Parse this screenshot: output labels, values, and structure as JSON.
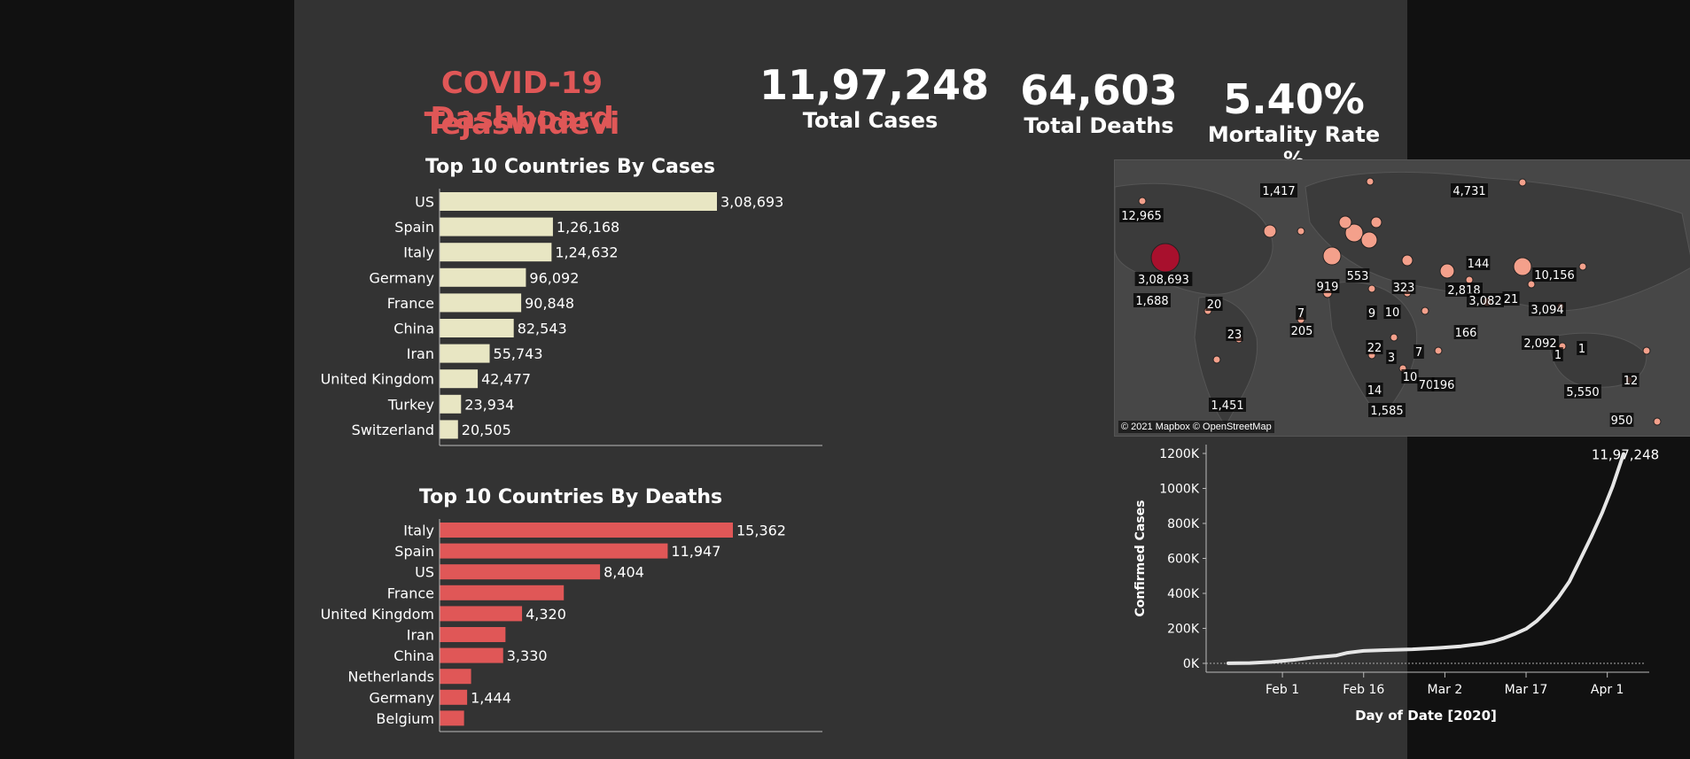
{
  "dashboard": {
    "title_line1": "COVID-19 Dashboard",
    "title_line2": "Tejaswidevi"
  },
  "kpis": {
    "total_cases": {
      "value": "11,97,248",
      "label": "Total Cases"
    },
    "total_deaths": {
      "value": "64,603",
      "label": "Total Deaths"
    },
    "mortality": {
      "value": "5.40%",
      "label": "Mortality Rate %"
    }
  },
  "colors": {
    "cases_bar": "#e8e6c3",
    "deaths_bar": "#e05757",
    "title": "#e05757",
    "map_bubble": "#f4a08b",
    "map_bubble_us": "#a8102d",
    "line": "#e6e6e6"
  },
  "chart_data": [
    {
      "type": "bar",
      "title": "Top 10 Countries By  Cases",
      "categories": [
        "US",
        "Spain",
        "Italy",
        "Germany",
        "France",
        "China",
        "Iran",
        "United Kingdom",
        "Turkey",
        "Switzerland"
      ],
      "values": [
        308693,
        126168,
        124632,
        96092,
        90848,
        82543,
        55743,
        42477,
        23934,
        20505
      ],
      "labels": [
        "3,08,693",
        "1,26,168",
        "1,24,632",
        "96,092",
        "90,848",
        "82,543",
        "55,743",
        "42,477",
        "23,934",
        "20,505"
      ]
    },
    {
      "type": "bar",
      "title": "Top 10 Countries By  Deaths",
      "categories": [
        "Italy",
        "Spain",
        "US",
        "France",
        "United Kingdom",
        "Iran",
        "China",
        "Netherlands",
        "Germany",
        "Belgium"
      ],
      "values": [
        15362,
        11947,
        8404,
        6507,
        4320,
        3452,
        3330,
        1651,
        1444,
        1283
      ],
      "labels": [
        "15,362",
        "11,947",
        "8,404",
        "",
        "4,320",
        "",
        "3,330",
        "",
        "1,444",
        ""
      ]
    },
    {
      "type": "line",
      "xlabel": "Day of Date [2020]",
      "ylabel": "Confirmed Cases",
      "x_ticks": [
        "Feb 1",
        "Feb 16",
        "Mar 2",
        "Mar 17",
        "Apr 1"
      ],
      "y_ticks": [
        "0K",
        "200K",
        "400K",
        "600K",
        "800K",
        "1000K",
        "1200K"
      ],
      "ylim": [
        0,
        1200000
      ],
      "end_label": "11,97,248",
      "points": [
        {
          "x": "2020-01-22",
          "y": 555
        },
        {
          "x": "2020-01-26",
          "y": 2118
        },
        {
          "x": "2020-01-30",
          "y": 8234
        },
        {
          "x": "2020-02-03",
          "y": 19887
        },
        {
          "x": "2020-02-07",
          "y": 34392
        },
        {
          "x": "2020-02-11",
          "y": 45222
        },
        {
          "x": "2020-02-13",
          "y": 60374
        },
        {
          "x": "2020-02-16",
          "y": 71226
        },
        {
          "x": "2020-02-20",
          "y": 76199
        },
        {
          "x": "2020-02-25",
          "y": 80407
        },
        {
          "x": "2020-03-01",
          "y": 88369
        },
        {
          "x": "2020-03-05",
          "y": 97886
        },
        {
          "x": "2020-03-09",
          "y": 113590
        },
        {
          "x": "2020-03-11",
          "y": 126214
        },
        {
          "x": "2020-03-13",
          "y": 145193
        },
        {
          "x": "2020-03-15",
          "y": 169153
        },
        {
          "x": "2020-03-17",
          "y": 197102
        },
        {
          "x": "2020-03-19",
          "y": 242708
        },
        {
          "x": "2020-03-21",
          "y": 304507
        },
        {
          "x": "2020-03-23",
          "y": 378287
        },
        {
          "x": "2020-03-25",
          "y": 467653
        },
        {
          "x": "2020-03-27",
          "y": 593291
        },
        {
          "x": "2020-03-29",
          "y": 720117
        },
        {
          "x": "2020-03-31",
          "y": 857487
        },
        {
          "x": "2020-04-02",
          "y": 1013157
        },
        {
          "x": "2020-04-04",
          "y": 1197248
        }
      ]
    }
  ],
  "map": {
    "credit": "© 2021 Mapbox © OpenStreetMap",
    "labels": [
      "12,965",
      "1,417",
      "4,731",
      "3,08,693",
      "1,688",
      "20",
      "23",
      "1,451",
      "919",
      "553",
      "323",
      "144",
      "2,818",
      "3,082",
      "21",
      "10,156",
      "3,094",
      "2,092",
      "1",
      "1",
      "205",
      "9",
      "10",
      "7",
      "22",
      "3",
      "10",
      "70",
      "196",
      "14",
      "1,585",
      "166",
      "7",
      "5,550",
      "12",
      "950"
    ],
    "bubble_sizes": [
      "small",
      "medium",
      "medium",
      "large",
      "us"
    ]
  }
}
